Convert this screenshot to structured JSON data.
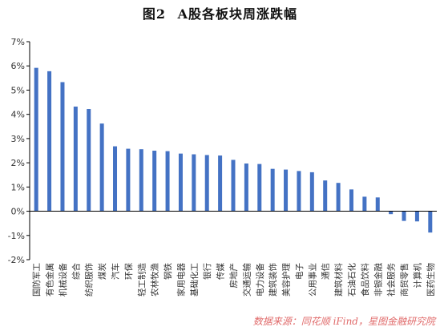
{
  "figure_label": "图2",
  "title": "A股各板块周涨跌幅",
  "source": "数据来源：同花顺 iFind，星图金融研究院",
  "colors": {
    "bar": "#4472C4",
    "axis": "#000000",
    "text": "#333333",
    "source": "#e06a6a"
  },
  "chart_data": {
    "type": "bar",
    "title": "A股各板块周涨跌幅",
    "xlabel": "",
    "ylabel": "",
    "ylim": [
      -2,
      7
    ],
    "ytick_step": 1,
    "ytick_format": "percent",
    "grid": false,
    "categories": [
      "国防军工",
      "有色金属",
      "机械设备",
      "综合",
      "纺织服饰",
      "煤炭",
      "汽车",
      "环保",
      "轻工制造",
      "农林牧渔",
      "钢铁",
      "家用电器",
      "基础化工",
      "银行",
      "传媒",
      "房地产",
      "交通运输",
      "电力设备",
      "建筑装饰",
      "美容护理",
      "电子",
      "公用事业",
      "通信",
      "建筑材料",
      "石油石化",
      "食品饮料",
      "非银金融",
      "社会服务",
      "商贸零售",
      "计算机",
      "医药生物"
    ],
    "values": [
      5.92,
      5.78,
      5.33,
      4.32,
      4.22,
      3.62,
      2.68,
      2.58,
      2.56,
      2.5,
      2.48,
      2.38,
      2.35,
      2.32,
      2.3,
      2.12,
      1.97,
      1.95,
      1.75,
      1.72,
      1.66,
      1.61,
      1.27,
      1.17,
      0.9,
      0.6,
      0.57,
      -0.12,
      -0.4,
      -0.42,
      -0.88
    ]
  }
}
